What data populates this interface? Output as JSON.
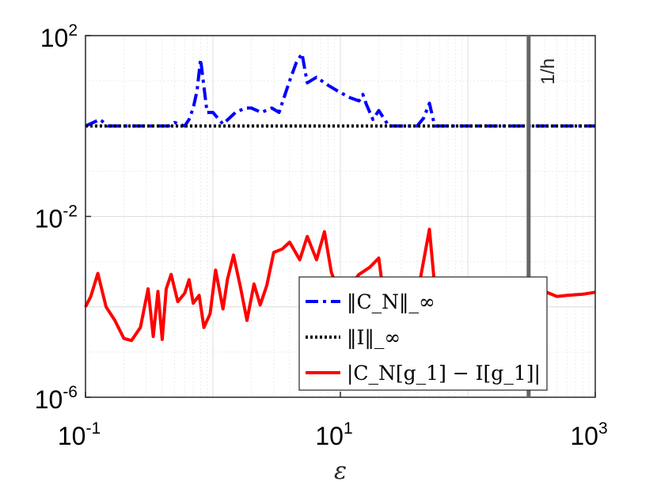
{
  "chart_data": {
    "type": "line",
    "xscale": "log",
    "yscale": "log",
    "xlim": [
      0.1,
      1000
    ],
    "ylim": [
      1e-06,
      100
    ],
    "grid": true,
    "minor_grid": true,
    "xlabel": "ε",
    "ylabel": "",
    "title": "",
    "x_ticks": [
      {
        "base": "10",
        "exp": "-1"
      },
      {
        "base": "10",
        "exp": "1"
      },
      {
        "base": "10",
        "exp": "3"
      }
    ],
    "y_ticks": [
      {
        "base": "10",
        "exp": "2"
      },
      {
        "base": "10",
        "exp": "-2"
      },
      {
        "base": "10",
        "exp": "-6"
      }
    ],
    "annotation": {
      "label": "1/h",
      "x": 300,
      "color": "#666666"
    },
    "legend_position": "bottom-right",
    "series": [
      {
        "name": "‖C_N‖_∞",
        "color": "#0000ff",
        "style": "dashdot",
        "x": [
          0.1,
          0.13,
          0.15,
          0.2,
          0.3,
          0.4,
          0.45,
          0.5,
          0.6,
          0.65,
          0.7,
          0.75,
          0.8,
          0.9,
          1.0,
          1.2,
          1.5,
          1.8,
          2.0,
          2.4,
          2.9,
          3.3,
          4.0,
          4.5,
          5.0,
          5.5,
          6.5,
          8.0,
          10,
          12,
          14,
          15,
          16,
          18,
          20,
          24,
          30,
          35,
          40,
          45,
          50,
          55,
          60,
          80,
          100,
          200,
          500,
          1000
        ],
        "y": [
          1.0,
          1.4,
          1.0,
          1.0,
          1.0,
          1.0,
          1.0,
          1.2,
          1.0,
          1.4,
          2.5,
          6,
          30,
          2.0,
          2.0,
          1.1,
          2.0,
          2.5,
          2.5,
          2.0,
          2.5,
          2.0,
          10,
          25,
          40,
          9,
          12,
          8,
          5.5,
          4.2,
          3.6,
          5,
          3.0,
          1.4,
          2.2,
          1.0,
          1.0,
          1.0,
          1.0,
          1.5,
          3.2,
          1.0,
          1.0,
          1.0,
          1.0,
          1.0,
          1.0,
          1.0
        ]
      },
      {
        "name": "‖I‖_∞",
        "color": "#000000",
        "style": "dotted",
        "x": [
          0.1,
          1000
        ],
        "y": [
          1.0,
          1.0
        ]
      },
      {
        "name": "|C_N[g_1] − I[g_1]|",
        "color": "#ff0000",
        "style": "solid",
        "x": [
          0.1,
          0.11,
          0.125,
          0.145,
          0.17,
          0.2,
          0.23,
          0.27,
          0.31,
          0.34,
          0.37,
          0.4,
          0.43,
          0.47,
          0.53,
          0.6,
          0.65,
          0.7,
          0.78,
          0.85,
          0.95,
          1.05,
          1.2,
          1.3,
          1.45,
          1.65,
          1.85,
          2.1,
          2.35,
          2.65,
          3.0,
          3.5,
          4.0,
          4.8,
          5.5,
          6.5,
          7.5,
          8.5,
          10,
          12,
          14,
          17,
          20,
          22,
          25,
          30,
          40,
          50,
          55,
          60,
          80,
          120,
          200,
          300,
          350,
          400,
          500,
          600,
          800,
          1000
        ],
        "y": [
          0.0001,
          0.00017,
          0.00055,
          0.0001,
          5e-05,
          2e-05,
          1.8e-05,
          3.5e-05,
          0.00025,
          2.2e-05,
          0.00022,
          1.9e-05,
          0.00025,
          0.00052,
          0.00013,
          0.0002,
          0.0004,
          0.00012,
          0.00018,
          3.5e-05,
          7e-05,
          0.00065,
          9e-05,
          0.0004,
          0.0014,
          0.00026,
          5e-05,
          0.00032,
          0.00011,
          0.0003,
          0.0016,
          0.0019,
          0.0027,
          0.0011,
          0.0036,
          0.0011,
          0.0046,
          0.00058,
          0.00017,
          0.0003,
          0.00052,
          0.00075,
          0.0012,
          0.00016,
          0.00017,
          0.00016,
          0.00017,
          0.0052,
          0.00028,
          0.00021,
          0.00018,
          0.00012,
          0.00013,
          0.00018,
          0.00021,
          0.00022,
          0.00017,
          0.00018,
          0.00019,
          0.00021
        ]
      }
    ]
  }
}
